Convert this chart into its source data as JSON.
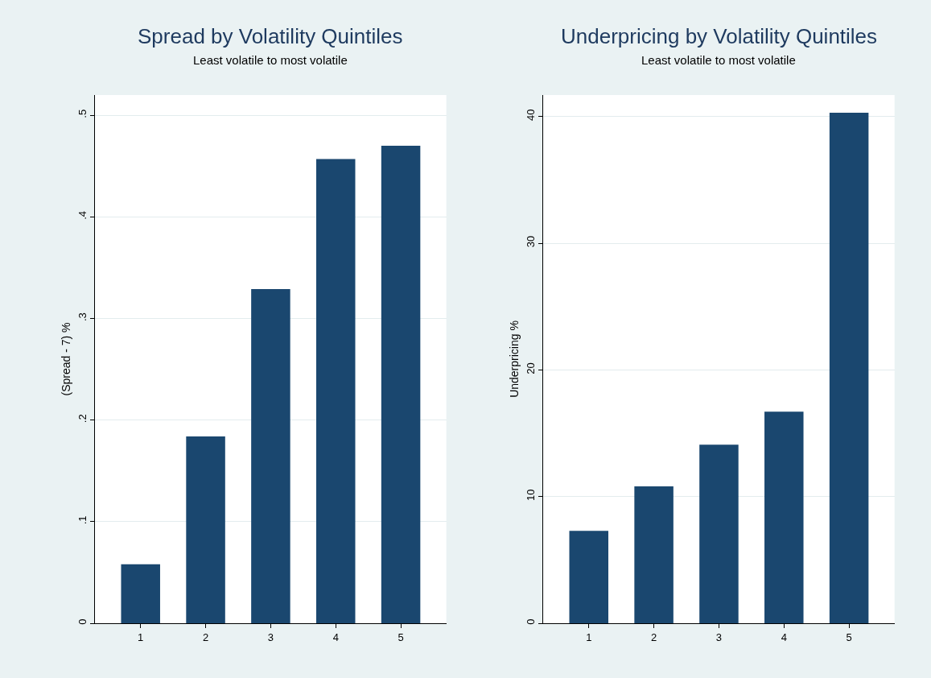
{
  "chart_data": [
    {
      "type": "bar",
      "title": "Spread by Volatility Quintiles",
      "subtitle": "Least volatile to most volatile",
      "ylabel": "(Spread - 7) %",
      "categories": [
        "1",
        "2",
        "3",
        "4",
        "5"
      ],
      "values": [
        0.058,
        0.184,
        0.329,
        0.457,
        0.47
      ],
      "color": "#1a476f",
      "ylim": [
        0,
        0.52
      ],
      "yticks": [
        0,
        {
          "value": 0.1,
          "label": ".1"
        },
        {
          "value": 0.2,
          "label": ".2"
        },
        {
          "value": 0.3,
          "label": ".3"
        },
        {
          "value": 0.4,
          "label": ".4"
        },
        {
          "value": 0.5,
          "label": ".5"
        }
      ],
      "grid": "y"
    },
    {
      "type": "bar",
      "title": "Underpricing by Volatility Quintiles",
      "subtitle": "Least volatile to most volatile",
      "ylabel": "Underpricing %",
      "categories": [
        "1",
        "2",
        "3",
        "4",
        "5"
      ],
      "values": [
        7.3,
        10.8,
        14.1,
        16.7,
        40.3
      ],
      "color": "#1a476f",
      "ylim": [
        0,
        41.7
      ],
      "yticks": [
        0,
        10,
        20,
        30,
        40
      ],
      "grid": "y"
    }
  ]
}
